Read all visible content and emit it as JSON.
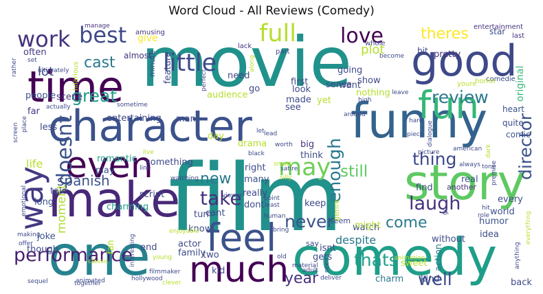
{
  "title": "Word Cloud - All Reviews (Comedy)",
  "words": [
    {
      "text": "movie",
      "color": "#21918c"
    },
    {
      "text": "film",
      "color": "#21918c"
    },
    {
      "text": "comedy",
      "color": "#1f9e89"
    },
    {
      "text": "character",
      "color": "#3b528b"
    },
    {
      "text": "funny",
      "color": "#33638d"
    },
    {
      "text": "one",
      "color": "#26828e"
    },
    {
      "text": "make",
      "color": "#482878"
    },
    {
      "text": "story",
      "color": "#5ec962"
    },
    {
      "text": "good",
      "color": "#3e4989"
    },
    {
      "text": "time",
      "color": "#440154"
    },
    {
      "text": "even",
      "color": "#440154"
    },
    {
      "text": "much",
      "color": "#440154"
    },
    {
      "text": "feel",
      "color": "#3b528b"
    },
    {
      "text": "way",
      "color": "#443983"
    },
    {
      "text": "fun",
      "color": "#35b779"
    },
    {
      "text": "full",
      "color": "#b5de2b"
    },
    {
      "text": "performance",
      "color": "#481f70"
    },
    {
      "text": "love",
      "color": "#440154"
    },
    {
      "text": "little",
      "color": "#3e4989"
    },
    {
      "text": "best",
      "color": "#3e4989"
    },
    {
      "text": "work",
      "color": "#46327e"
    },
    {
      "text": "theres",
      "color": "#fde725"
    },
    {
      "text": "review",
      "color": "#2a788e"
    },
    {
      "text": "doesnt",
      "color": "#3b528b"
    },
    {
      "text": "enough",
      "color": "#2a788e"
    },
    {
      "text": "may",
      "color": "#6ece58"
    },
    {
      "text": "cast",
      "color": "#2a788e"
    },
    {
      "text": "great",
      "color": "#1f9e89"
    },
    {
      "text": "still",
      "color": "#5ec962"
    },
    {
      "text": "thing",
      "color": "#3e4989"
    },
    {
      "text": "director",
      "color": "#3b528b"
    },
    {
      "text": "laugh",
      "color": "#46327e"
    },
    {
      "text": "take",
      "color": "#46327e"
    },
    {
      "text": "new",
      "color": "#2a788e"
    },
    {
      "text": "never",
      "color": "#3b528b"
    },
    {
      "text": "come",
      "color": "#2a788e"
    },
    {
      "text": "year",
      "color": "#46327e"
    },
    {
      "text": "thats",
      "color": "#1f9e89"
    },
    {
      "text": "well",
      "color": "#3e4989"
    },
    {
      "text": "spanish",
      "color": "#3b528b"
    },
    {
      "text": "moment",
      "color": "#addc30"
    },
    {
      "text": "plot",
      "color": "#b5de2b"
    },
    {
      "text": "lot",
      "color": "#3e4989"
    },
    {
      "text": "scene",
      "color": "#46327e"
    },
    {
      "text": "often",
      "color": "#443983"
    },
    {
      "text": "give",
      "color": "#fde725"
    },
    {
      "text": "almost",
      "color": "#46327e"
    },
    {
      "text": "hilarious",
      "color": "#b5de2b"
    },
    {
      "text": "amusing",
      "color": "#46327e"
    },
    {
      "text": "manage",
      "color": "#46327e"
    },
    {
      "text": "lack",
      "color": "#46327e"
    },
    {
      "text": "bit",
      "color": "#3e4989"
    },
    {
      "text": "star",
      "color": "#3e4989"
    },
    {
      "text": "last",
      "color": "#46327e"
    },
    {
      "text": "entertainment",
      "color": "#46327e"
    },
    {
      "text": "pretty",
      "color": "#46327e"
    },
    {
      "text": "original",
      "color": "#35b779"
    },
    {
      "text": "heart",
      "color": "#3b528b"
    },
    {
      "text": "quite",
      "color": "#3e4989"
    },
    {
      "text": "comic",
      "color": "#3b528b"
    },
    {
      "text": "audience",
      "color": "#b5de2b"
    },
    {
      "text": "entertaining",
      "color": "#3e4989"
    },
    {
      "text": "man",
      "color": "#3e4989"
    },
    {
      "text": "people",
      "color": "#3b528b"
    },
    {
      "text": "far",
      "color": "#46327e"
    },
    {
      "text": "less",
      "color": "#3e4989"
    },
    {
      "text": "life",
      "color": "#b5de2b"
    },
    {
      "text": "romantic",
      "color": "#1f9e89"
    },
    {
      "text": "something",
      "color": "#3e4989"
    },
    {
      "text": "play",
      "color": "#3b528b"
    },
    {
      "text": "tale",
      "color": "#3b528b"
    },
    {
      "text": "long",
      "color": "#3b528b"
    },
    {
      "text": "script",
      "color": "#3e4989"
    },
    {
      "text": "charming",
      "color": "#1f9e89"
    },
    {
      "text": "right",
      "color": "#3e4989"
    },
    {
      "text": "big",
      "color": "#46327e"
    },
    {
      "text": "think",
      "color": "#3e4989"
    },
    {
      "text": "many",
      "color": "#3b528b"
    },
    {
      "text": "drama",
      "color": "#b5de2b"
    },
    {
      "text": "day",
      "color": "#b5de2b"
    },
    {
      "text": "really",
      "color": "#3e4989"
    },
    {
      "text": "dont",
      "color": "#3e4989"
    },
    {
      "text": "watch",
      "color": "#3e4989"
    },
    {
      "text": "despite",
      "color": "#2a788e"
    },
    {
      "text": "keep",
      "color": "#3e4989"
    },
    {
      "text": "seem",
      "color": "#3e4989"
    },
    {
      "text": "genre",
      "color": "#b5de2b"
    },
    {
      "text": "find",
      "color": "#3e4989"
    },
    {
      "text": "real",
      "color": "#3b528b"
    },
    {
      "text": "another",
      "color": "#46327e"
    },
    {
      "text": "every",
      "color": "#3e4989"
    },
    {
      "text": "world",
      "color": "#3b528b"
    },
    {
      "text": "humor",
      "color": "#3b528b"
    },
    {
      "text": "without",
      "color": "#3e4989"
    },
    {
      "text": "might",
      "color": "#b5de2b"
    },
    {
      "text": "know",
      "color": "#3e4989"
    },
    {
      "text": "actor",
      "color": "#3e4989"
    },
    {
      "text": "family",
      "color": "#3e4989"
    },
    {
      "text": "two",
      "color": "#3e4989"
    },
    {
      "text": "kid",
      "color": "#3e4989"
    },
    {
      "text": "isnt",
      "color": "#3e4989"
    },
    {
      "text": "gets",
      "color": "#3e4989"
    },
    {
      "text": "say",
      "color": "#3e4989"
    },
    {
      "text": "sweet",
      "color": "#b5de2b"
    },
    {
      "text": "action",
      "color": "#2a788e"
    },
    {
      "text": "back",
      "color": "#3e4989"
    },
    {
      "text": "kind",
      "color": "#3e4989"
    },
    {
      "text": "charm",
      "color": "#2a788e"
    },
    {
      "text": "end",
      "color": "#3e4989"
    },
    {
      "text": "joke",
      "color": "#3b528b"
    },
    {
      "text": "though",
      "color": "#3e4989"
    },
    {
      "text": "fan",
      "color": "#b5de2b"
    },
    {
      "text": "cant",
      "color": "#3e4989"
    },
    {
      "text": "turn",
      "color": "#3e4989"
    },
    {
      "text": "idea",
      "color": "#3e4989"
    },
    {
      "text": "first",
      "color": "#3e4989"
    },
    {
      "text": "made",
      "color": "#3e4989"
    },
    {
      "text": "look",
      "color": "#3e4989"
    },
    {
      "text": "see",
      "color": "#3e4989"
    },
    {
      "text": "yet",
      "color": "#b5de2b"
    },
    {
      "text": "sense",
      "color": "#3e4989"
    },
    {
      "text": "want",
      "color": "#3e4989"
    },
    {
      "text": "going",
      "color": "#3e4989"
    },
    {
      "text": "show",
      "color": "#3e4989"
    },
    {
      "text": "nothing",
      "color": "#b5de2b"
    },
    {
      "text": "need",
      "color": "#3e4989"
    },
    {
      "text": "go",
      "color": "#3e4989"
    },
    {
      "text": "feature",
      "color": "#3e4989"
    },
    {
      "text": "minute",
      "color": "#3e4989"
    },
    {
      "text": "part",
      "color": "#3e4989"
    },
    {
      "text": "whole",
      "color": "#3e4989"
    },
    {
      "text": "become",
      "color": "#3e4989"
    },
    {
      "text": "comedie",
      "color": "#3e4989"
    },
    {
      "text": "horror",
      "color": "#b5de2b"
    },
    {
      "text": "youre",
      "color": "#b5de2b"
    },
    {
      "text": "leave",
      "color": "#3e4989"
    },
    {
      "text": "high",
      "color": "#3e4989"
    },
    {
      "text": "around",
      "color": "#3e4989"
    },
    {
      "text": "along",
      "color": "#b5de2b"
    },
    {
      "text": "perfect",
      "color": "#3e4989"
    },
    {
      "text": "ultimately",
      "color": "#3e4989"
    },
    {
      "text": "set",
      "color": "#3e4989"
    },
    {
      "text": "rather",
      "color": "#3e4989"
    },
    {
      "text": "actually",
      "color": "#3e4989"
    },
    {
      "text": "place",
      "color": "#3e4989"
    },
    {
      "text": "sometime",
      "color": "#3e4989"
    },
    {
      "text": "live",
      "color": "#b5de2b"
    },
    {
      "text": "line",
      "color": "#3e4989"
    },
    {
      "text": "black",
      "color": "#3e4989"
    },
    {
      "text": "smart",
      "color": "#b5de2b"
    },
    {
      "text": "silly",
      "color": "#b5de2b"
    },
    {
      "text": "point",
      "color": "#3e4989"
    },
    {
      "text": "least",
      "color": "#3e4989"
    },
    {
      "text": "human",
      "color": "#3e4989"
    },
    {
      "text": "bring",
      "color": "#3e4989"
    },
    {
      "text": "lead",
      "color": "#3e4989"
    },
    {
      "text": "worth",
      "color": "#3e4989"
    },
    {
      "text": "satire",
      "color": "#3e4989"
    },
    {
      "text": "let",
      "color": "#3e4989"
    },
    {
      "text": "screen",
      "color": "#3e4989"
    },
    {
      "text": "watching",
      "color": "#3e4989"
    },
    {
      "text": "viewer",
      "color": "#3e4989"
    },
    {
      "text": "enjoyable",
      "color": "#b5de2b"
    },
    {
      "text": "emotional",
      "color": "#3e4989"
    },
    {
      "text": "making",
      "color": "#3e4989"
    },
    {
      "text": "offer",
      "color": "#3e4989"
    },
    {
      "text": "young",
      "color": "#b5de2b"
    },
    {
      "text": "interesting",
      "color": "#3e4989"
    },
    {
      "text": "filmmaker",
      "color": "#3e4989"
    },
    {
      "text": "classic",
      "color": "#b5de2b"
    },
    {
      "text": "material",
      "color": "#3e4989"
    },
    {
      "text": "old",
      "color": "#3e4989"
    },
    {
      "text": "deliver",
      "color": "#3e4989"
    },
    {
      "text": "seen",
      "color": "#3e4989"
    },
    {
      "text": "animation",
      "color": "#b5de2b"
    },
    {
      "text": "adult",
      "color": "#3e4989"
    },
    {
      "text": "animated",
      "color": "#3e4989"
    },
    {
      "text": "hollywood",
      "color": "#3e4989"
    },
    {
      "text": "clever",
      "color": "#b5de2b"
    },
    {
      "text": "together",
      "color": "#3e4989"
    },
    {
      "text": "sequel",
      "color": "#3e4989"
    },
    {
      "text": "anything",
      "color": "#3e4989"
    },
    {
      "text": "everything",
      "color": "#b5de2b"
    },
    {
      "text": "role",
      "color": "#3e4989"
    },
    {
      "text": "hit",
      "color": "#3e4989"
    },
    {
      "text": "go",
      "color": "#3e4989"
    },
    {
      "text": "premise",
      "color": "#3e4989"
    },
    {
      "text": "tone",
      "color": "#3e4989"
    },
    {
      "text": "dark",
      "color": "#b5de2b"
    },
    {
      "text": "american",
      "color": "#3e4989"
    },
    {
      "text": "picture",
      "color": "#3e4989"
    },
    {
      "text": "piece",
      "color": "#3e4989"
    },
    {
      "text": "dialogue",
      "color": "#3e4989"
    },
    {
      "text": "always",
      "color": "#3e4989"
    },
    {
      "text": "hard",
      "color": "#3e4989"
    },
    {
      "text": "bad",
      "color": "#b5de2b"
    }
  ]
}
